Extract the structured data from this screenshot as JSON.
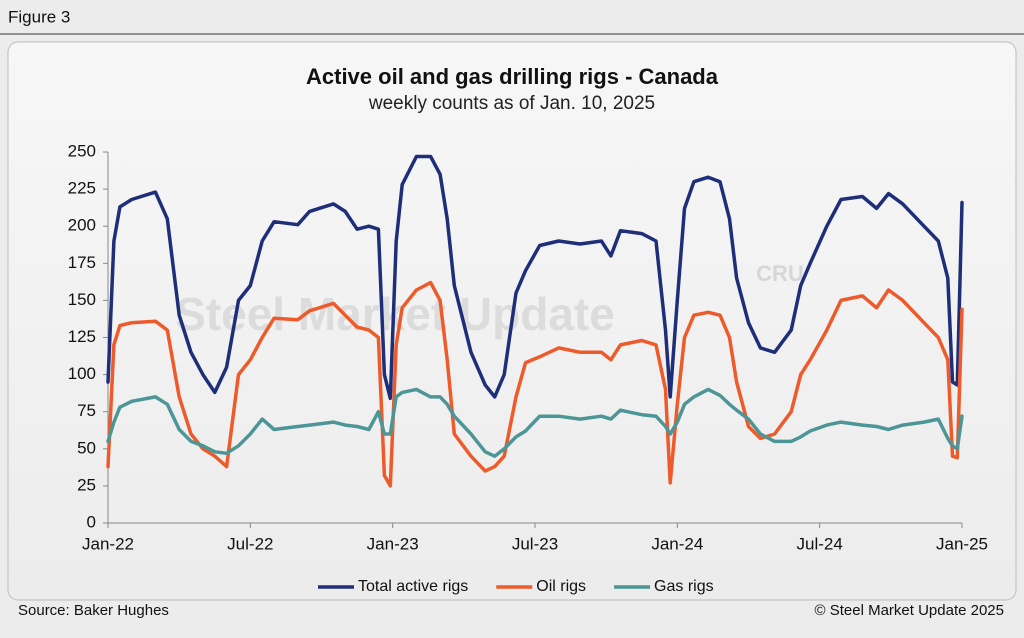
{
  "figure_label": "Figure 3",
  "source": "Source: Baker Hughes",
  "copyright": "© Steel Market Update 2025",
  "watermark": "Steel Market Update",
  "watermark_logo": "CRU",
  "chart_data": {
    "type": "line",
    "title": "Active oil and gas drilling rigs - Canada",
    "subtitle": "weekly counts as of Jan. 10, 2025",
    "x": [
      0,
      0.25,
      0.5,
      1,
      2,
      2.5,
      3,
      3.5,
      4,
      4.5,
      5,
      5.5,
      6,
      6.5,
      7,
      8,
      8.5,
      9.5,
      10,
      10.5,
      11,
      11.4,
      11.65,
      11.9,
      12.15,
      12.4,
      13,
      13.6,
      14,
      14.3,
      14.6,
      15.3,
      15.9,
      16.3,
      16.7,
      17.2,
      17.6,
      18.2,
      19,
      19.9,
      20.8,
      21.2,
      21.6,
      22.5,
      23.1,
      23.5,
      23.7,
      24,
      24.3,
      24.7,
      25.3,
      25.8,
      26.2,
      26.5,
      27,
      27.5,
      28.1,
      28.8,
      29.2,
      29.6,
      30.3,
      30.9,
      31.8,
      32.4,
      32.9,
      33.5,
      34.4,
      35,
      35.4,
      35.6,
      35.8,
      36
    ],
    "xlim": [
      0,
      36
    ],
    "xticks": [
      {
        "value": 0,
        "label": "Jan-22"
      },
      {
        "value": 6,
        "label": "Jul-22"
      },
      {
        "value": 12,
        "label": "Jan-23"
      },
      {
        "value": 18,
        "label": "Jul-23"
      },
      {
        "value": 24,
        "label": "Jan-24"
      },
      {
        "value": 30,
        "label": "Jul-24"
      },
      {
        "value": 36,
        "label": "Jan-25"
      }
    ],
    "ylim": [
      0,
      250
    ],
    "yticks": [
      0,
      25,
      50,
      75,
      100,
      125,
      150,
      175,
      200,
      225,
      250
    ],
    "legend": "bottom",
    "series": [
      {
        "name": "Total active rigs",
        "color": "#1f2e78",
        "values": [
          95,
          190,
          213,
          218,
          223,
          205,
          140,
          115,
          100,
          88,
          105,
          150,
          160,
          190,
          203,
          201,
          210,
          215,
          210,
          198,
          200,
          198,
          100,
          84,
          190,
          228,
          247,
          247,
          235,
          205,
          160,
          115,
          93,
          85,
          100,
          155,
          170,
          187,
          190,
          188,
          190,
          180,
          197,
          195,
          190,
          130,
          85,
          150,
          212,
          230,
          233,
          230,
          205,
          165,
          135,
          118,
          115,
          130,
          160,
          175,
          200,
          218,
          220,
          212,
          222,
          215,
          200,
          190,
          165,
          95,
          93,
          216
        ]
      },
      {
        "name": "Oil rigs",
        "color": "#ee5a2a",
        "values": [
          38,
          120,
          133,
          135,
          136,
          130,
          85,
          60,
          50,
          45,
          38,
          100,
          110,
          125,
          138,
          137,
          143,
          148,
          140,
          132,
          130,
          125,
          32,
          25,
          120,
          145,
          157,
          162,
          150,
          110,
          60,
          45,
          35,
          38,
          45,
          85,
          108,
          112,
          118,
          115,
          115,
          110,
          120,
          123,
          120,
          90,
          27,
          80,
          125,
          140,
          142,
          140,
          125,
          95,
          65,
          57,
          60,
          75,
          100,
          110,
          130,
          150,
          153,
          145,
          157,
          150,
          135,
          125,
          110,
          45,
          44,
          144
        ]
      },
      {
        "name": "Gas rigs",
        "color": "#4d9697",
        "values": [
          55,
          68,
          78,
          82,
          85,
          80,
          63,
          55,
          52,
          48,
          47,
          52,
          60,
          70,
          63,
          65,
          66,
          68,
          66,
          65,
          63,
          75,
          60,
          60,
          85,
          88,
          90,
          85,
          85,
          80,
          72,
          60,
          48,
          45,
          50,
          58,
          62,
          72,
          72,
          70,
          72,
          70,
          76,
          73,
          72,
          65,
          60,
          68,
          80,
          85,
          90,
          86,
          80,
          76,
          70,
          60,
          55,
          55,
          58,
          62,
          66,
          68,
          66,
          65,
          63,
          66,
          68,
          70,
          57,
          52,
          50,
          72
        ]
      }
    ]
  }
}
